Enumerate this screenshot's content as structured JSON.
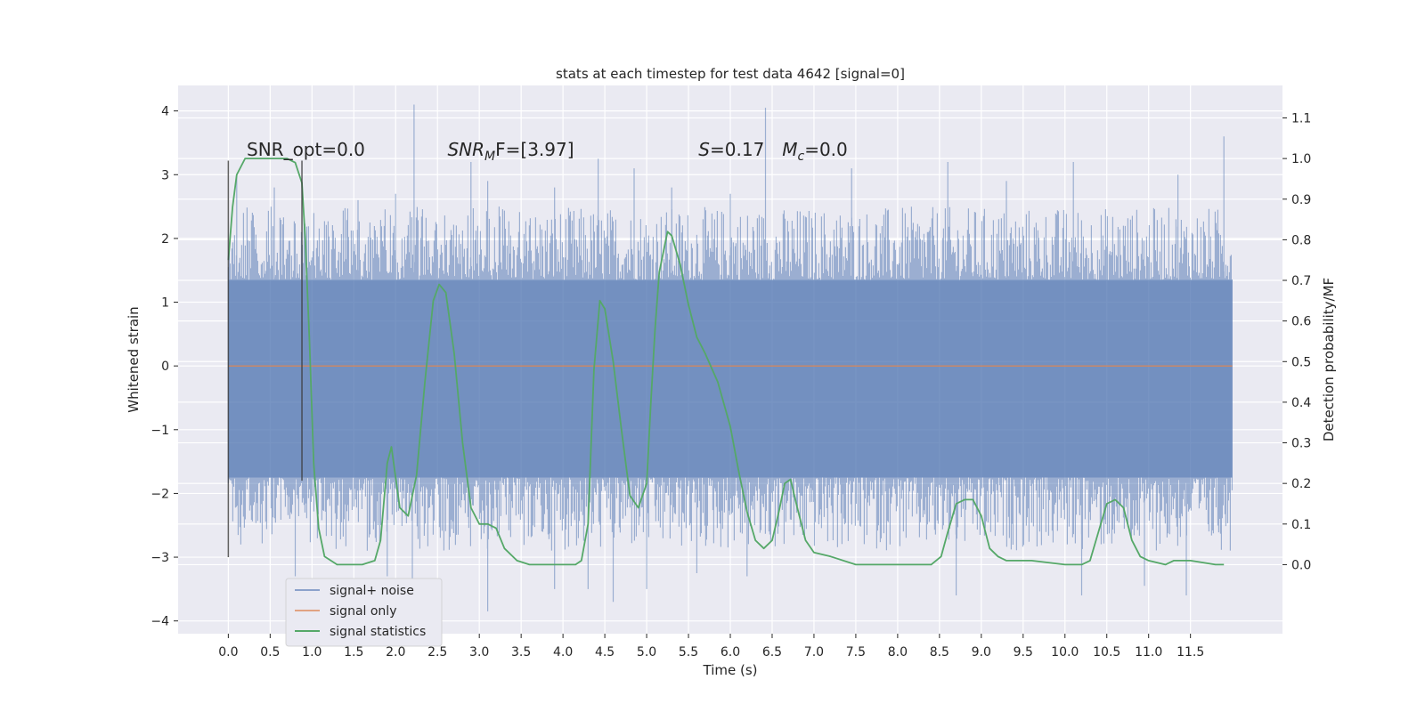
{
  "chart_data": {
    "type": "line",
    "title": "stats at each timestep for test data 4642 [signal=0]",
    "xlabel": "Time (s)",
    "ylabel": "Whitened strain",
    "y2label": "Detection probability/MF",
    "xlim": [
      -0.6,
      12.6
    ],
    "ylim": [
      -4.2,
      4.4
    ],
    "y2lim": [
      -0.17,
      1.18
    ],
    "x_ticks": [
      "0.0",
      "0.5",
      "1.0",
      "1.5",
      "2.0",
      "2.5",
      "3.0",
      "3.5",
      "4.0",
      "4.5",
      "5.0",
      "5.5",
      "6.0",
      "6.5",
      "7.0",
      "7.5",
      "8.0",
      "8.5",
      "9.0",
      "9.5",
      "10.0",
      "10.5",
      "11.0",
      "11.5"
    ],
    "y_ticks": [
      "4",
      "3",
      "2",
      "1",
      "0",
      "−1",
      "−2",
      "−3",
      "−4"
    ],
    "y2_ticks": [
      "1.1",
      "1.0",
      "0.9",
      "0.8",
      "0.7",
      "0.6",
      "0.5",
      "0.4",
      "0.3",
      "0.2",
      "0.1",
      "0.0"
    ],
    "grid": true,
    "legend_position": "lower-left",
    "annotations": [
      {
        "text": "SNR_opt=0.0",
        "x": 0.22,
        "y": 3.3
      },
      {
        "text": "SNR",
        "sub": "M",
        "tail": "F=[3.97]",
        "italic": true,
        "x": 2.62,
        "y": 3.3
      },
      {
        "text": "S",
        "tail": "=0.17",
        "italic": true,
        "x": 5.62,
        "y": 3.3
      },
      {
        "text": "M",
        "sub": "c",
        "tail": "=0.0",
        "italic": true,
        "x": 6.62,
        "y": 3.3
      }
    ],
    "vlines": [
      {
        "x": 0.0,
        "y0": -3.0,
        "y1": 3.22
      },
      {
        "x": 0.88,
        "y0": -1.8,
        "y1": 3.22
      }
    ],
    "series": [
      {
        "name": "signal+ noise",
        "color": "#4c72b0",
        "axis": "left",
        "band": {
          "x_start": 0.0,
          "x_end": 12.0,
          "core_low": -1.75,
          "core_high": 1.35,
          "typical_max": 2.5,
          "typical_min": -2.9
        },
        "peaks": [
          {
            "x": 0.1,
            "y": 3.0
          },
          {
            "x": 0.55,
            "y": 2.8
          },
          {
            "x": 1.55,
            "y": 2.6
          },
          {
            "x": 2.0,
            "y": 2.7
          },
          {
            "x": 2.22,
            "y": 4.1
          },
          {
            "x": 2.9,
            "y": 3.2
          },
          {
            "x": 3.1,
            "y": 2.9
          },
          {
            "x": 3.9,
            "y": 2.8
          },
          {
            "x": 4.42,
            "y": 3.25
          },
          {
            "x": 4.85,
            "y": 3.1
          },
          {
            "x": 5.3,
            "y": 2.8
          },
          {
            "x": 6.0,
            "y": 2.7
          },
          {
            "x": 6.42,
            "y": 4.05
          },
          {
            "x": 7.45,
            "y": 3.1
          },
          {
            "x": 8.6,
            "y": 3.2
          },
          {
            "x": 9.3,
            "y": 2.9
          },
          {
            "x": 10.1,
            "y": 3.2
          },
          {
            "x": 11.35,
            "y": 3.0
          },
          {
            "x": 11.9,
            "y": 3.6
          }
        ],
        "troughs": [
          {
            "x": 0.8,
            "y": -3.3
          },
          {
            "x": 1.9,
            "y": -3.3
          },
          {
            "x": 2.2,
            "y": -3.4
          },
          {
            "x": 3.1,
            "y": -3.85
          },
          {
            "x": 3.9,
            "y": -3.5
          },
          {
            "x": 4.3,
            "y": -3.5
          },
          {
            "x": 4.6,
            "y": -3.7
          },
          {
            "x": 5.0,
            "y": -3.5
          },
          {
            "x": 5.6,
            "y": -3.25
          },
          {
            "x": 6.2,
            "y": -3.3
          },
          {
            "x": 8.7,
            "y": -3.6
          },
          {
            "x": 10.2,
            "y": -3.6
          },
          {
            "x": 10.95,
            "y": -3.45
          },
          {
            "x": 11.45,
            "y": -3.6
          }
        ]
      },
      {
        "name": "signal only",
        "color": "#dd8452",
        "axis": "left",
        "x": [
          0.0,
          12.0
        ],
        "y": [
          0.0,
          0.0
        ]
      },
      {
        "name": "signal statistics",
        "color": "#55a868",
        "axis": "right",
        "x": [
          0.0,
          0.05,
          0.1,
          0.2,
          0.3,
          0.5,
          0.7,
          0.8,
          0.88,
          0.92,
          0.97,
          1.02,
          1.08,
          1.15,
          1.3,
          1.6,
          1.75,
          1.82,
          1.9,
          1.95,
          2.05,
          2.15,
          2.25,
          2.35,
          2.45,
          2.52,
          2.6,
          2.7,
          2.8,
          2.9,
          3.0,
          3.1,
          3.2,
          3.3,
          3.45,
          3.6,
          3.8,
          4.0,
          4.15,
          4.22,
          4.3,
          4.37,
          4.44,
          4.5,
          4.6,
          4.7,
          4.8,
          4.9,
          5.0,
          5.05,
          5.1,
          5.15,
          5.25,
          5.3,
          5.4,
          5.5,
          5.6,
          5.7,
          5.85,
          6.0,
          6.1,
          6.2,
          6.3,
          6.4,
          6.5,
          6.58,
          6.65,
          6.72,
          6.8,
          6.9,
          7.0,
          7.2,
          7.5,
          8.0,
          8.4,
          8.52,
          8.6,
          8.7,
          8.8,
          8.9,
          9.0,
          9.1,
          9.2,
          9.3,
          9.6,
          10.0,
          10.2,
          10.3,
          10.4,
          10.5,
          10.6,
          10.7,
          10.8,
          10.9,
          11.0,
          11.2,
          11.3,
          11.5,
          11.8,
          11.9
        ],
        "y": [
          0.75,
          0.88,
          0.96,
          1.0,
          1.0,
          1.0,
          1.0,
          0.99,
          0.94,
          0.8,
          0.55,
          0.25,
          0.09,
          0.02,
          0.0,
          0.0,
          0.01,
          0.06,
          0.25,
          0.29,
          0.14,
          0.12,
          0.22,
          0.45,
          0.65,
          0.69,
          0.67,
          0.52,
          0.3,
          0.14,
          0.1,
          0.1,
          0.09,
          0.04,
          0.01,
          0.0,
          0.0,
          0.0,
          0.0,
          0.01,
          0.1,
          0.48,
          0.65,
          0.63,
          0.5,
          0.33,
          0.17,
          0.14,
          0.2,
          0.4,
          0.58,
          0.72,
          0.82,
          0.81,
          0.74,
          0.64,
          0.56,
          0.52,
          0.45,
          0.34,
          0.23,
          0.13,
          0.06,
          0.04,
          0.06,
          0.13,
          0.2,
          0.21,
          0.14,
          0.06,
          0.03,
          0.02,
          0.0,
          0.0,
          0.0,
          0.02,
          0.08,
          0.15,
          0.16,
          0.16,
          0.12,
          0.04,
          0.02,
          0.01,
          0.01,
          0.0,
          0.0,
          0.01,
          0.08,
          0.15,
          0.16,
          0.14,
          0.06,
          0.02,
          0.01,
          0.0,
          0.01,
          0.01,
          0.0,
          0.0
        ]
      }
    ]
  }
}
